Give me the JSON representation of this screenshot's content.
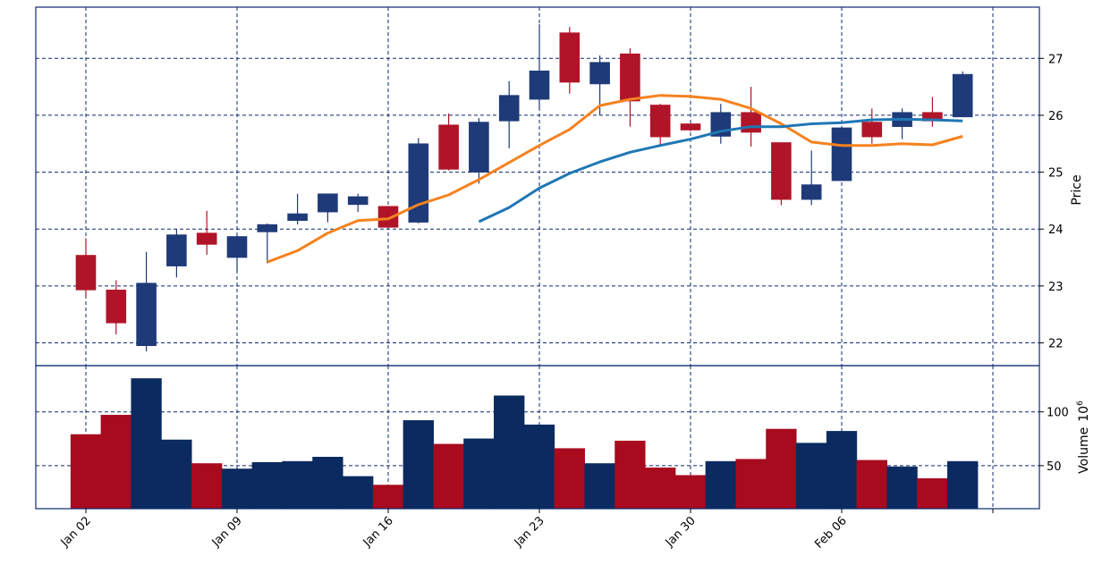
{
  "chart_data": {
    "type": "candlestick",
    "colors": {
      "up": "#1e3a78",
      "down": "#b01428",
      "vol_up": "#0a2a60",
      "vol_down": "#a80a1e",
      "ma_short": "#f5821f",
      "ma_long": "#1f77b4",
      "grid": "#0d2a6e"
    },
    "x_tick_labels": [
      {
        "index": 0,
        "label": "Jan 02"
      },
      {
        "index": 5,
        "label": "Jan 09"
      },
      {
        "index": 10,
        "label": "Jan 16"
      },
      {
        "index": 15,
        "label": "Jan 23"
      },
      {
        "index": 20,
        "label": "Jan 30"
      },
      {
        "index": 25,
        "label": "Feb 06"
      }
    ],
    "price_axis": {
      "label": "Price",
      "ylim": [
        21.6,
        27.9
      ],
      "ticks": [
        22,
        23,
        24,
        25,
        26,
        27
      ]
    },
    "volume_axis": {
      "label": "Volume",
      "exponent_label": "10",
      "exponent": "6",
      "ylim": [
        10,
        143
      ],
      "ticks": [
        50,
        100
      ]
    },
    "grid": true,
    "candles": [
      {
        "o": 23.54,
        "h": 23.84,
        "l": 22.8,
        "c": 22.93,
        "v": 79
      },
      {
        "o": 22.93,
        "h": 23.1,
        "l": 22.15,
        "c": 22.35,
        "v": 97
      },
      {
        "o": 21.95,
        "h": 23.6,
        "l": 21.85,
        "c": 23.05,
        "v": 131
      },
      {
        "o": 23.35,
        "h": 24.0,
        "l": 23.15,
        "c": 23.9,
        "v": 74
      },
      {
        "o": 23.93,
        "h": 24.32,
        "l": 23.55,
        "c": 23.73,
        "v": 52
      },
      {
        "o": 23.5,
        "h": 23.9,
        "l": 23.25,
        "c": 23.87,
        "v": 47
      },
      {
        "o": 23.95,
        "h": 24.1,
        "l": 23.4,
        "c": 24.08,
        "v": 53
      },
      {
        "o": 24.15,
        "h": 24.62,
        "l": 24.08,
        "c": 24.27,
        "v": 54
      },
      {
        "o": 24.3,
        "h": 24.62,
        "l": 24.12,
        "c": 24.62,
        "v": 58
      },
      {
        "o": 24.43,
        "h": 24.62,
        "l": 24.3,
        "c": 24.57,
        "v": 40
      },
      {
        "o": 24.4,
        "h": 24.4,
        "l": 24.02,
        "c": 24.03,
        "v": 32
      },
      {
        "o": 24.12,
        "h": 25.6,
        "l": 24.1,
        "c": 25.5,
        "v": 92
      },
      {
        "o": 25.83,
        "h": 26.03,
        "l": 25.03,
        "c": 25.05,
        "v": 70
      },
      {
        "o": 25.0,
        "h": 25.95,
        "l": 24.8,
        "c": 25.88,
        "v": 75
      },
      {
        "o": 25.9,
        "h": 26.6,
        "l": 25.42,
        "c": 26.35,
        "v": 115
      },
      {
        "o": 26.28,
        "h": 27.6,
        "l": 26.1,
        "c": 26.78,
        "v": 88
      },
      {
        "o": 27.45,
        "h": 27.55,
        "l": 26.38,
        "c": 26.58,
        "v": 66
      },
      {
        "o": 26.55,
        "h": 27.05,
        "l": 26.0,
        "c": 26.93,
        "v": 52
      },
      {
        "o": 27.08,
        "h": 27.18,
        "l": 25.8,
        "c": 26.25,
        "v": 73
      },
      {
        "o": 26.18,
        "h": 26.2,
        "l": 25.45,
        "c": 25.62,
        "v": 48
      },
      {
        "o": 25.85,
        "h": 25.85,
        "l": 25.72,
        "c": 25.74,
        "v": 41
      },
      {
        "o": 25.63,
        "h": 26.2,
        "l": 25.5,
        "c": 26.05,
        "v": 54
      },
      {
        "o": 26.05,
        "h": 26.5,
        "l": 25.45,
        "c": 25.7,
        "v": 56
      },
      {
        "o": 25.52,
        "h": 25.52,
        "l": 24.42,
        "c": 24.52,
        "v": 84
      },
      {
        "o": 24.52,
        "h": 25.38,
        "l": 24.42,
        "c": 24.78,
        "v": 71
      },
      {
        "o": 24.85,
        "h": 25.8,
        "l": 24.85,
        "c": 25.78,
        "v": 82
      },
      {
        "o": 25.88,
        "h": 26.12,
        "l": 25.5,
        "c": 25.62,
        "v": 55
      },
      {
        "o": 25.8,
        "h": 26.12,
        "l": 25.58,
        "c": 26.05,
        "v": 49
      },
      {
        "o": 26.05,
        "h": 26.32,
        "l": 25.8,
        "c": 25.9,
        "v": 38
      },
      {
        "o": 25.97,
        "h": 26.77,
        "l": 25.97,
        "c": 26.72,
        "v": 54
      }
    ],
    "ma_short": {
      "start": 6,
      "values": [
        23.42,
        23.62,
        23.93,
        24.15,
        24.18,
        24.43,
        24.6,
        24.87,
        25.17,
        25.47,
        25.75,
        26.17,
        26.28,
        26.35,
        26.33,
        26.28,
        26.12,
        25.85,
        25.53,
        25.47,
        25.47,
        25.5,
        25.48,
        25.63
      ]
    },
    "ma_long": {
      "start": 13,
      "values": [
        24.13,
        24.38,
        24.72,
        24.98,
        25.18,
        25.35,
        25.47,
        25.58,
        25.72,
        25.8,
        25.8,
        25.85,
        25.87,
        25.92,
        25.93,
        25.92,
        25.9
      ]
    }
  }
}
